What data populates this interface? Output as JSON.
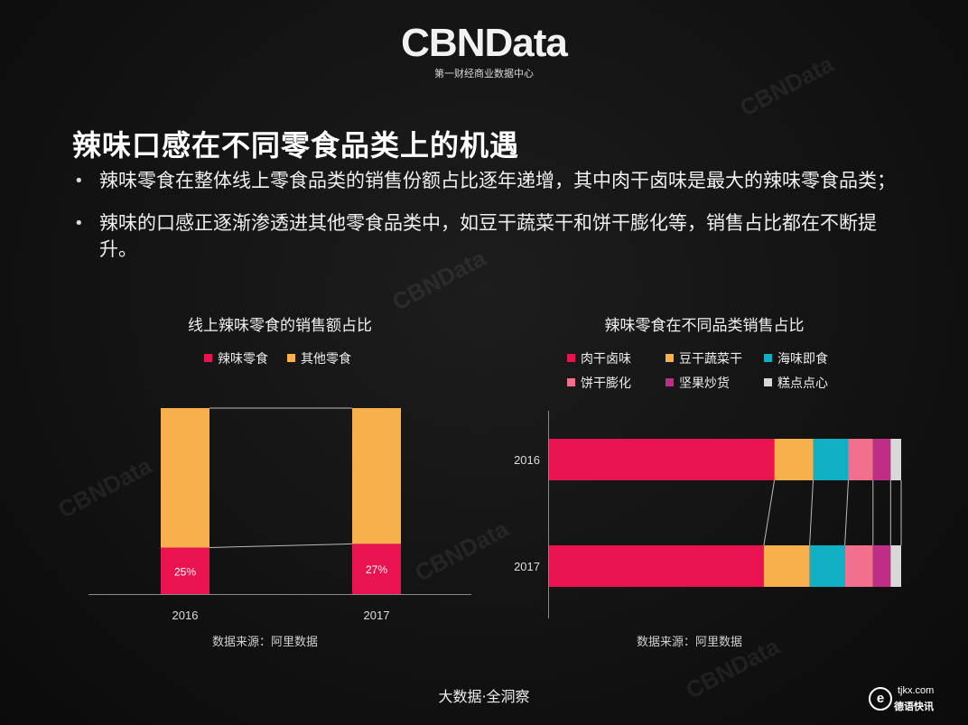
{
  "logo": {
    "main": "CBNData",
    "sub": "第一财经商业数据中心"
  },
  "title": "辣味口感在不同零食品类上的机遇",
  "bullets": [
    "辣味零食在整体线上零食品类的销售份额占比逐年递增，其中肉干卤味是最大的辣味零食品类；",
    "辣味的口感正逐渐渗透进其他零食品类中，如豆干蔬菜干和饼干膨化等，销售占比都在不断提升。"
  ],
  "bullet_char": "•",
  "colors": {
    "spicy": "#E8134F",
    "other": "#F7B04B",
    "meat": "#E8134F",
    "tofu": "#F7B04B",
    "seafood": "#10AFC3",
    "biscuit": "#F2708E",
    "nuts": "#BF2E86",
    "pastry": "#D8D8D8"
  },
  "chart_data": [
    {
      "type": "bar",
      "title": "线上辣味零食的销售额占比",
      "categories": [
        "2016",
        "2017"
      ],
      "series": [
        {
          "name": "辣味零食",
          "values": [
            25,
            27
          ]
        },
        {
          "name": "其他零食",
          "values": [
            75,
            73
          ]
        }
      ],
      "data_labels": [
        "25%",
        "27%"
      ],
      "stacked": true,
      "ylim": [
        0,
        100
      ],
      "legend": "top-center",
      "source": "数据来源：阿里数据"
    },
    {
      "type": "bar",
      "orientation": "horizontal",
      "title": "辣味零食在不同品类销售占比",
      "categories": [
        "2016",
        "2017"
      ],
      "series": [
        {
          "name": "肉干卤味",
          "values": [
            64,
            61
          ]
        },
        {
          "name": "豆干蔬菜干",
          "values": [
            11,
            13
          ]
        },
        {
          "name": "海味即食",
          "values": [
            10,
            10
          ]
        },
        {
          "name": "饼干膨化",
          "values": [
            7,
            8
          ]
        },
        {
          "name": "坚果炒货",
          "values": [
            5,
            5
          ]
        },
        {
          "name": "糕点点心",
          "values": [
            3,
            3
          ]
        }
      ],
      "stacked": true,
      "xlim": [
        0,
        100
      ],
      "legend": "top-left",
      "source": "数据来源：阿里数据"
    }
  ],
  "footer": "大数据·全洞察",
  "corner": {
    "mark": "e",
    "top": "tjkx.com",
    "bottom": "德语快讯"
  },
  "watermark": "CBNData"
}
